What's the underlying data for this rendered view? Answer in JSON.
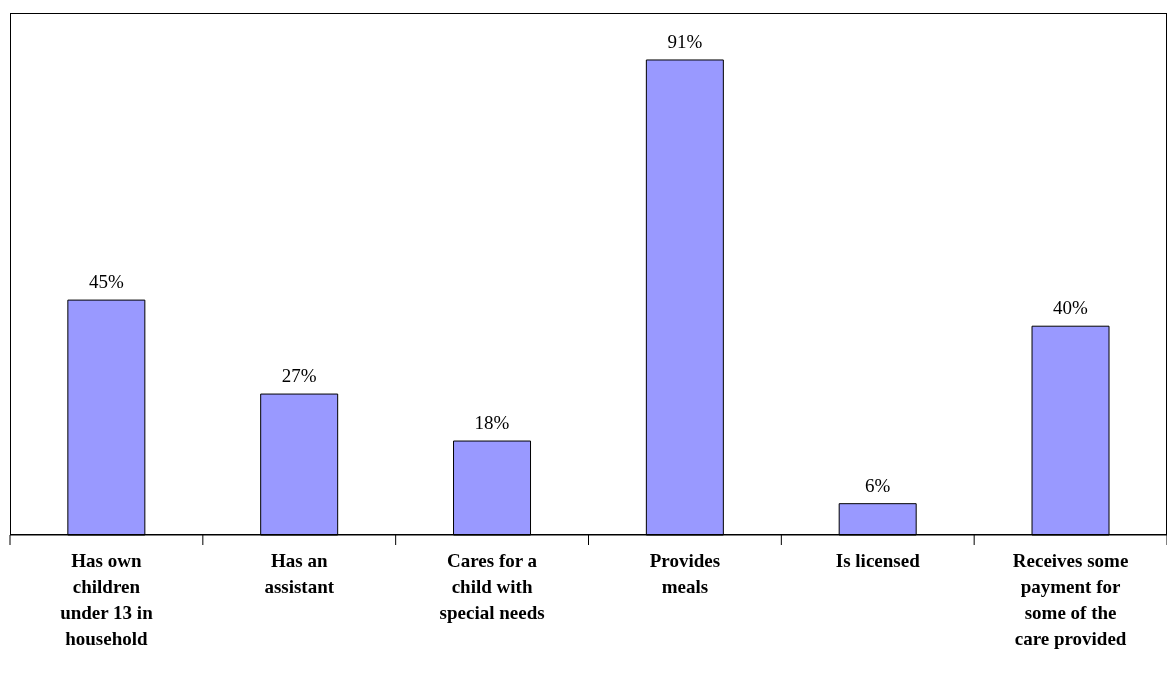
{
  "chart_data": {
    "type": "bar",
    "categories": [
      "Has own children under 13 in household",
      "Has an assistant",
      "Cares for a child with special needs",
      "Provides meals",
      "Is licensed",
      "Receives some payment for some of the care provided"
    ],
    "values": [
      45,
      27,
      18,
      91,
      6,
      40
    ],
    "value_labels": [
      "45%",
      "27%",
      "18%",
      "91%",
      "6%",
      "40%"
    ],
    "color": "#9999ff",
    "grid": false,
    "tick_labels": "x"
  }
}
